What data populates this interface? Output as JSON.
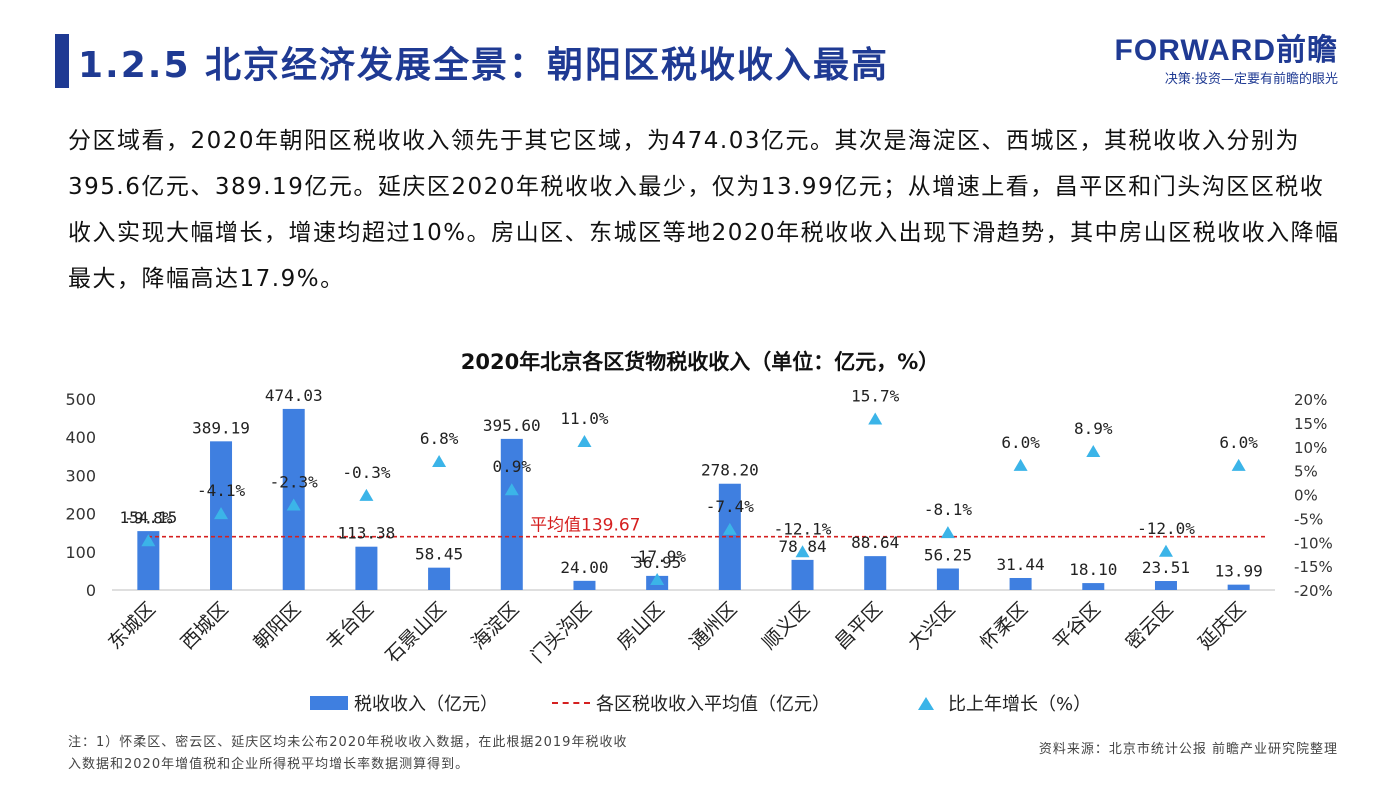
{
  "header": {
    "title": "1.2.5 北京经济发展全景：朝阳区税收收入最高",
    "logo": "FORWARD前瞻",
    "logo_slogan": "决策·投资—定要有前瞻的眼光"
  },
  "intro": "分区域看，2020年朝阳区税收收入领先于其它区域，为474.03亿元。其次是海淀区、西城区，其税收收入分别为395.6亿元、389.19亿元。延庆区2020年税收收入最少，仅为13.99亿元；从增速上看，昌平区和门头沟区区税收收入实现大幅增长，增速均超过10%。房山区、东城区等地2020年税收收入出现下滑趋势，其中房山区税收收入降幅最大，降幅高达17.9%。",
  "chart_data": {
    "type": "bar",
    "title": "2020年北京各区货物税收收入（单位：亿元，%）",
    "categories": [
      "东城区",
      "西城区",
      "朝阳区",
      "丰台区",
      "石景山区",
      "海淀区",
      "门头沟区",
      "房山区",
      "通州区",
      "顺义区",
      "昌平区",
      "大兴区",
      "怀柔区",
      "平谷区",
      "密云区",
      "延庆区"
    ],
    "series": [
      {
        "name": "税收收入（亿元）",
        "type": "bar",
        "axis": "left",
        "color": "#3f7fe0",
        "values": [
          154.15,
          389.19,
          474.03,
          113.38,
          58.45,
          395.6,
          24.0,
          36.95,
          278.2,
          78.84,
          88.64,
          56.25,
          31.44,
          18.1,
          23.51,
          13.99
        ],
        "labels": [
          "154.15",
          "389.19",
          "474.03",
          "113.38",
          "58.45",
          "395.60",
          "24.00",
          "36.95",
          "278.20",
          "78.84",
          "88.64",
          "56.25",
          "31.44",
          "18.10",
          "23.51",
          "13.99"
        ]
      },
      {
        "name": "比上年增长（%）",
        "type": "scatter",
        "marker": "triangle",
        "axis": "right",
        "color": "#3bb4e8",
        "values": [
          -9.8,
          -4.1,
          -2.3,
          -0.3,
          6.8,
          0.9,
          11.0,
          -17.9,
          -7.4,
          -12.1,
          15.7,
          -8.1,
          6.0,
          8.9,
          -12.0,
          6.0
        ],
        "labels": [
          "-9.8%",
          "-4.1%",
          "-2.3%",
          "-0.3%",
          "6.8%",
          "0.9%",
          "11.0%",
          "-17.9%",
          "-7.4%",
          "-12.1%",
          "15.7%",
          "-8.1%",
          "6.0%",
          "8.9%",
          "-12.0%",
          "6.0%"
        ]
      }
    ],
    "average": {
      "name": "各区税收收入平均值（亿元）",
      "value": 139.67,
      "label": "平均值139.67",
      "color": "#d52020"
    },
    "ylim_left": [
      0,
      500
    ],
    "yticks_left": [
      "0",
      "100",
      "200",
      "300",
      "400",
      "500"
    ],
    "ylim_right": [
      -20,
      20
    ],
    "yticks_right": [
      "-20%",
      "-15%",
      "-10%",
      "-5%",
      "0%",
      "5%",
      "10%",
      "15%",
      "20%"
    ],
    "grid": false,
    "legend_position": "bottom"
  },
  "legend": {
    "bar": "税收收入（亿元）",
    "line": "各区税收收入平均值（亿元）",
    "marker": "比上年增长（%）"
  },
  "footer": {
    "note_line1": "注：1）怀柔区、密云区、延庆区均未公布2020年税收收入数据，在此根据2019年税收收",
    "note_line2": "入数据和2020年增值税和企业所得税平均增长率数据测算得到。",
    "source": "资料来源：北京市统计公报  前瞻产业研究院整理"
  }
}
